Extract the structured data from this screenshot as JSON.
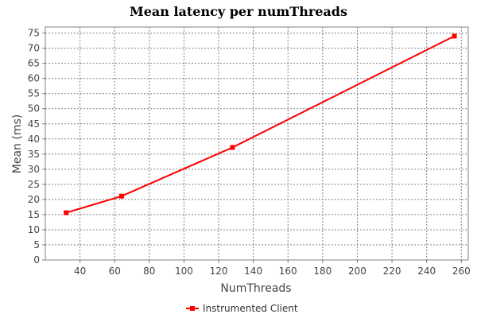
{
  "colors": {
    "plot_background": "#ffffff",
    "grid": "#808080",
    "series": "#ff0000"
  },
  "chart_data": {
    "type": "line",
    "title": "Mean latency per numThreads",
    "xlabel": "NumThreads",
    "ylabel": "Mean (ms)",
    "xlim": [
      20,
      264
    ],
    "ylim": [
      0,
      77
    ],
    "xticks": [
      40,
      60,
      80,
      100,
      120,
      140,
      160,
      180,
      200,
      220,
      240,
      260
    ],
    "yticks": [
      0,
      5,
      10,
      15,
      20,
      25,
      30,
      35,
      40,
      45,
      50,
      55,
      60,
      65,
      70,
      75
    ],
    "grid": true,
    "legend_position": "bottom-center",
    "series": [
      {
        "name": "Instrumented Client",
        "x": [
          32,
          64,
          128,
          256
        ],
        "y": [
          15.6,
          21.1,
          37.2,
          74.0
        ]
      }
    ]
  }
}
